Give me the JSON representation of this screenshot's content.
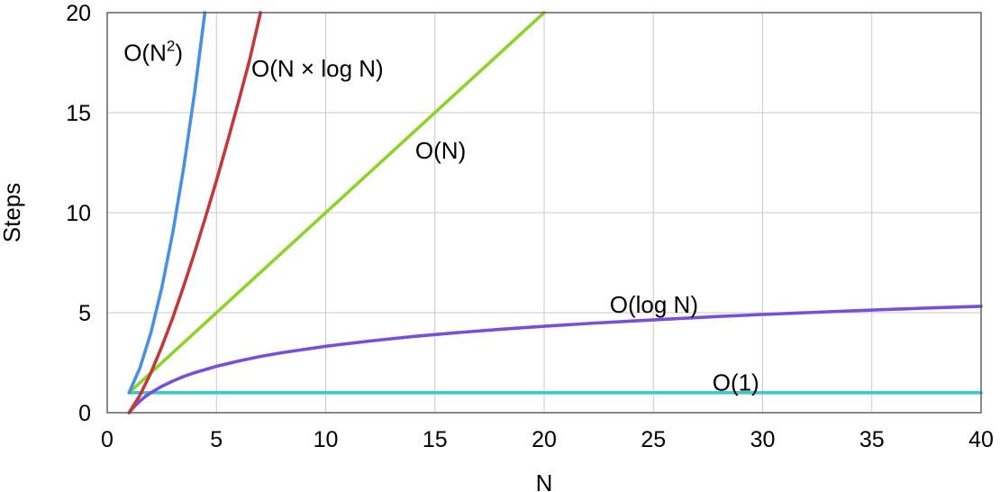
{
  "chart_data": {
    "type": "line",
    "xlabel": "N",
    "ylabel": "Steps",
    "xlim": [
      0,
      40
    ],
    "ylim": [
      0,
      20
    ],
    "xticks": [
      0,
      5,
      10,
      15,
      20,
      25,
      30,
      35,
      40
    ],
    "yticks": [
      0,
      5,
      10,
      15,
      20
    ],
    "grid": true,
    "series": [
      {
        "key": "n2",
        "name": "O(N²)",
        "name_parts": [
          "O(N",
          "2",
          ")"
        ],
        "color": "#4a90e2",
        "x": [
          1,
          1.5,
          2,
          2.5,
          3,
          3.5,
          4,
          4.47
        ],
        "y": [
          1,
          2.25,
          4,
          6.25,
          9,
          12.25,
          16,
          20
        ]
      },
      {
        "key": "nlogn",
        "name": "O(N × log N)",
        "color": "#c0393b",
        "x": [
          1,
          1.5,
          2,
          2.5,
          3,
          3.5,
          4,
          4.5,
          5,
          5.5,
          6,
          6.5,
          7.02
        ],
        "y": [
          0,
          0.88,
          2,
          3.3,
          4.75,
          6.33,
          8,
          9.77,
          11.61,
          13.53,
          15.51,
          17.55,
          20
        ]
      },
      {
        "key": "n",
        "name": "O(N)",
        "color": "#8fd32a",
        "x": [
          1,
          20
        ],
        "y": [
          1,
          20
        ]
      },
      {
        "key": "logn",
        "name": "O(log N)",
        "color": "#7a4fd8",
        "x": [
          1,
          1.25,
          1.5,
          1.75,
          2,
          2.5,
          3,
          3.5,
          4,
          5,
          6,
          7,
          8,
          10,
          12,
          14,
          16,
          18,
          20,
          22,
          24,
          26,
          28,
          30,
          32,
          34,
          36,
          38,
          40
        ],
        "y": [
          0,
          0.32,
          0.58,
          0.81,
          1,
          1.32,
          1.58,
          1.81,
          2,
          2.32,
          2.58,
          2.81,
          3,
          3.32,
          3.58,
          3.81,
          4,
          4.17,
          4.32,
          4.46,
          4.58,
          4.7,
          4.81,
          4.91,
          5,
          5.09,
          5.17,
          5.25,
          5.32
        ]
      },
      {
        "key": "const",
        "name": "O(1)",
        "color": "#3cc9c3",
        "x": [
          1,
          40
        ],
        "y": [
          1,
          1
        ]
      }
    ]
  }
}
